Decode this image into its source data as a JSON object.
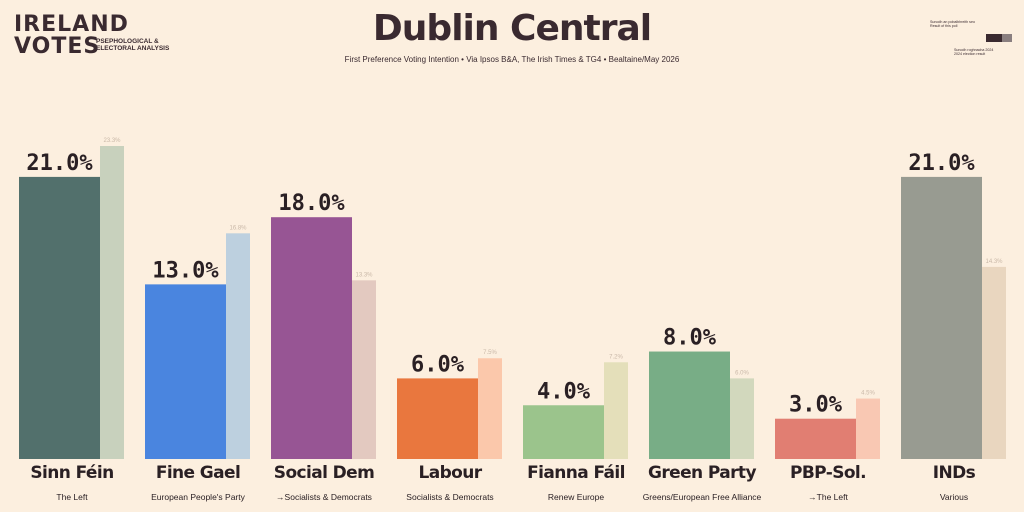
{
  "logo": {
    "line1": "IRELAND",
    "line2": "VOTES",
    "sub": "PSEPHOLOGICAL & ELECTORAL ANALYSIS"
  },
  "legend": {
    "current_text": "Sunodh an pobalbhreith seo Result of this poll",
    "previous_text": "Sunodh roghnacha 2024 2024 election result"
  },
  "chart_data": {
    "type": "bar",
    "title": "Dublin Central",
    "subtitle": "First Preference Voting Intention • Via Ipsos B&A, The Irish Times & TG4 • Bealtaine/May 2026",
    "ylim": [
      0,
      23.3
    ],
    "categories": [
      "Sinn Féin",
      "Fine Gael",
      "Social Dem",
      "Labour",
      "Fianna Fáil",
      "Green Party",
      "PBP-Sol.",
      "INDs"
    ],
    "groups": [
      "The Left",
      "European People's Party",
      "→Socialists & Democrats",
      "Socialists & Democrats",
      "Renew Europe",
      "Greens/European Free Alliance",
      "→The Left",
      "Various"
    ],
    "series": [
      {
        "name": "Result of this poll",
        "values": [
          21.0,
          13.0,
          18.0,
          6.0,
          4.0,
          8.0,
          3.0,
          21.0
        ],
        "labels": [
          "21.0%",
          "13.0%",
          "18.0%",
          "6.0%",
          "4.0%",
          "8.0%",
          "3.0%",
          "21.0%"
        ]
      },
      {
        "name": "2024 election result",
        "values": [
          23.3,
          16.8,
          13.3,
          7.5,
          7.2,
          6.0,
          4.5,
          14.3
        ],
        "labels": [
          "23.3%",
          "16.8%",
          "13.3%",
          "7.5%",
          "7.2%",
          "6.0%",
          "4.5%",
          "14.3%"
        ]
      }
    ],
    "colors": {
      "current": [
        "#52706c",
        "#4a85df",
        "#975594",
        "#e9773e",
        "#9bc48c",
        "#78ad86",
        "#e17e72",
        "#989b91"
      ],
      "previous": [
        "#c8d1bd",
        "#bdd0df",
        "#e3c9c0",
        "#fbc8ab",
        "#e4dfba",
        "#d2d8bd",
        "#f9c8b3",
        "#e9d6bf"
      ]
    }
  }
}
